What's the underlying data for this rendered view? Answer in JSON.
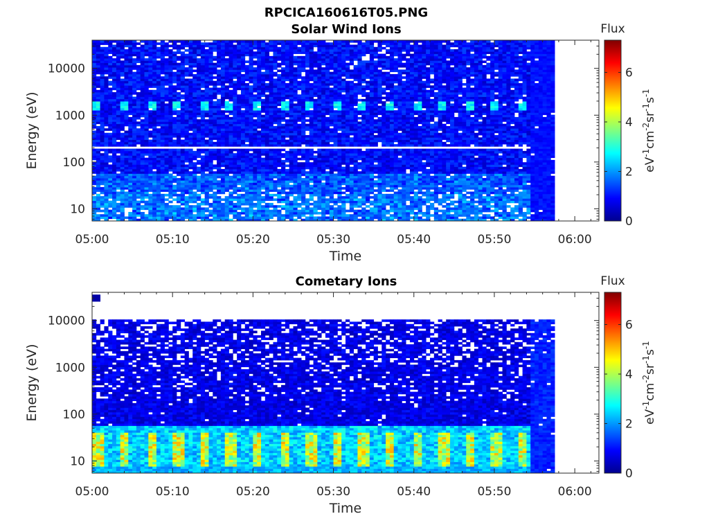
{
  "figure_title": "RPCICA160616T05.PNG",
  "chart_data": [
    {
      "type": "heatmap",
      "title": "Solar Wind Ions",
      "xlabel": "Time",
      "ylabel": "Energy (eV)",
      "x_ticks": [
        "05:00",
        "05:10",
        "05:20",
        "05:30",
        "05:40",
        "05:50",
        "06:00"
      ],
      "x_range_minutes": [
        0,
        63
      ],
      "data_end_minute": 57.5,
      "y_scale": "log",
      "y_ticks": [
        10,
        100,
        1000,
        10000
      ],
      "y_range": [
        5.5,
        40000
      ],
      "colorbar": {
        "title": "Flux",
        "label": "eV-1 cm-2 sr-1 s-1",
        "ticks": [
          0,
          2,
          4,
          6
        ],
        "range": [
          0,
          7.3
        ],
        "colormap": "jet"
      },
      "features": {
        "sweep_period_minutes": 3.3,
        "sweep_energy_eV": 1600,
        "white_gap_energy_eV": 200
      }
    },
    {
      "type": "heatmap",
      "title": "Cometary Ions",
      "xlabel": "Time",
      "ylabel": "Energy (eV)",
      "x_ticks": [
        "05:00",
        "05:10",
        "05:20",
        "05:30",
        "05:40",
        "05:50",
        "06:00"
      ],
      "x_range_minutes": [
        0,
        63
      ],
      "data_end_minute": 57.5,
      "y_scale": "log",
      "y_ticks": [
        10,
        100,
        1000,
        10000
      ],
      "y_range": [
        5.5,
        40000
      ],
      "colorbar": {
        "title": "Flux",
        "label": "eV-1 cm-2 sr-1 s-1",
        "ticks": [
          0,
          2,
          4,
          6
        ],
        "range": [
          0,
          7.3
        ],
        "colormap": "jet"
      },
      "features": {
        "sweep_period_minutes": 3.3,
        "low_energy_peak_eV": 18,
        "upper_cutoff_eV": 11000
      }
    }
  ]
}
